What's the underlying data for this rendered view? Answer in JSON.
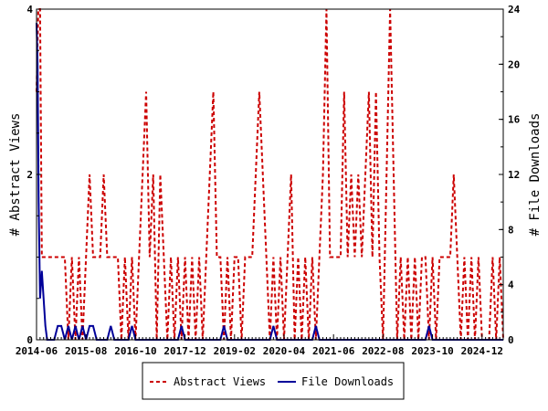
{
  "chart_data": {
    "type": "line",
    "ylabel_left": "# Abstract Views",
    "ylabel_right": "# File Downloads",
    "xlabels": [
      "2014-06",
      "2015-08",
      "2016-10",
      "2017-12",
      "2019-02",
      "2020-04",
      "2021-06",
      "2022-08",
      "2023-10",
      "2024-12"
    ],
    "yticks_left": [
      "0",
      "2",
      "4"
    ],
    "yticks_right": [
      "0",
      "4",
      "8",
      "12",
      "16",
      "20",
      "24"
    ],
    "ylim_left": [
      0,
      4
    ],
    "ylim_right": [
      0,
      24
    ],
    "xlim": [
      0,
      132
    ],
    "legend_position": "bottom-center",
    "series": [
      {
        "name": "Abstract Views",
        "axis": "left",
        "color": "#cc0000",
        "style": "dashed",
        "points": [
          [
            0,
            3
          ],
          [
            0.5,
            4
          ],
          [
            1,
            4
          ],
          [
            1.5,
            1
          ],
          [
            2,
            1
          ],
          [
            3,
            1
          ],
          [
            4,
            1
          ],
          [
            5,
            1
          ],
          [
            6,
            1
          ],
          [
            7,
            1
          ],
          [
            8,
            1
          ],
          [
            9,
            0
          ],
          [
            10,
            1
          ],
          [
            11,
            0
          ],
          [
            12,
            1
          ],
          [
            13,
            0
          ],
          [
            14,
            1
          ],
          [
            15,
            2
          ],
          [
            16,
            1
          ],
          [
            17,
            1
          ],
          [
            18,
            1
          ],
          [
            19,
            2
          ],
          [
            20,
            1
          ],
          [
            21,
            1
          ],
          [
            22,
            1
          ],
          [
            23,
            1
          ],
          [
            24,
            0
          ],
          [
            25,
            1
          ],
          [
            26,
            0
          ],
          [
            27,
            1
          ],
          [
            28,
            0
          ],
          [
            29,
            1
          ],
          [
            30,
            2
          ],
          [
            31,
            3
          ],
          [
            32,
            1
          ],
          [
            33,
            2
          ],
          [
            34,
            0
          ],
          [
            35,
            2
          ],
          [
            36,
            1
          ],
          [
            37,
            0
          ],
          [
            38,
            1
          ],
          [
            39,
            0
          ],
          [
            40,
            1
          ],
          [
            41,
            0
          ],
          [
            42,
            1
          ],
          [
            43,
            0
          ],
          [
            44,
            1
          ],
          [
            45,
            0
          ],
          [
            46,
            1
          ],
          [
            47,
            0
          ],
          [
            48,
            1
          ],
          [
            49,
            2
          ],
          [
            50,
            3
          ],
          [
            51,
            1
          ],
          [
            52,
            1
          ],
          [
            53,
            0
          ],
          [
            54,
            1
          ],
          [
            55,
            0
          ],
          [
            56,
            1
          ],
          [
            57,
            1
          ],
          [
            58,
            0
          ],
          [
            59,
            1
          ],
          [
            60,
            1
          ],
          [
            61,
            1
          ],
          [
            62,
            2
          ],
          [
            63,
            3
          ],
          [
            64,
            2
          ],
          [
            65,
            1
          ],
          [
            66,
            0
          ],
          [
            67,
            1
          ],
          [
            68,
            0
          ],
          [
            69,
            1
          ],
          [
            70,
            0
          ],
          [
            71,
            1
          ],
          [
            72,
            2
          ],
          [
            73,
            0
          ],
          [
            74,
            1
          ],
          [
            75,
            0
          ],
          [
            76,
            1
          ],
          [
            77,
            0
          ],
          [
            78,
            1
          ],
          [
            79,
            0
          ],
          [
            80,
            1
          ],
          [
            81,
            2
          ],
          [
            82,
            4
          ],
          [
            83,
            1
          ],
          [
            84,
            1
          ],
          [
            85,
            1
          ],
          [
            86,
            1
          ],
          [
            87,
            3
          ],
          [
            88,
            1
          ],
          [
            89,
            2
          ],
          [
            90,
            1
          ],
          [
            91,
            2
          ],
          [
            92,
            1
          ],
          [
            93,
            2
          ],
          [
            94,
            3
          ],
          [
            95,
            1
          ],
          [
            96,
            3
          ],
          [
            97,
            1
          ],
          [
            98,
            0
          ],
          [
            99,
            2
          ],
          [
            100,
            4
          ],
          [
            101,
            2
          ],
          [
            102,
            0
          ],
          [
            103,
            1
          ],
          [
            104,
            0
          ],
          [
            105,
            1
          ],
          [
            106,
            0
          ],
          [
            107,
            1
          ],
          [
            108,
            0
          ],
          [
            109,
            1
          ],
          [
            110,
            1
          ],
          [
            111,
            0
          ],
          [
            112,
            1
          ],
          [
            113,
            0
          ],
          [
            114,
            1
          ],
          [
            115,
            1
          ],
          [
            116,
            1
          ],
          [
            117,
            1
          ],
          [
            118,
            2
          ],
          [
            119,
            1
          ],
          [
            120,
            0
          ],
          [
            121,
            1
          ],
          [
            122,
            0
          ],
          [
            123,
            1
          ],
          [
            124,
            0
          ],
          [
            125,
            1
          ],
          [
            126,
            0
          ],
          [
            127,
            0
          ],
          [
            128,
            0
          ],
          [
            129,
            1
          ],
          [
            130,
            0
          ],
          [
            131,
            1
          ],
          [
            132,
            0
          ]
        ]
      },
      {
        "name": "File Downloads",
        "axis": "right",
        "color": "#000099",
        "style": "solid",
        "points": [
          [
            0,
            23
          ],
          [
            0.3,
            20
          ],
          [
            0.6,
            10
          ],
          [
            1,
            3
          ],
          [
            1.5,
            5
          ],
          [
            2,
            3
          ],
          [
            2.5,
            1
          ],
          [
            3,
            0
          ],
          [
            5,
            0
          ],
          [
            6,
            1
          ],
          [
            7,
            1
          ],
          [
            8,
            0
          ],
          [
            9,
            1
          ],
          [
            10,
            0
          ],
          [
            11,
            1
          ],
          [
            12,
            0
          ],
          [
            13,
            1
          ],
          [
            14,
            0
          ],
          [
            15,
            1
          ],
          [
            16,
            1
          ],
          [
            17,
            0
          ],
          [
            18,
            0
          ],
          [
            20,
            0
          ],
          [
            21,
            1
          ],
          [
            22,
            0
          ],
          [
            26,
            0
          ],
          [
            27,
            1
          ],
          [
            28,
            0
          ],
          [
            40,
            0
          ],
          [
            41,
            1
          ],
          [
            42,
            0
          ],
          [
            52,
            0
          ],
          [
            53,
            1
          ],
          [
            54,
            0
          ],
          [
            55,
            0
          ],
          [
            66,
            0
          ],
          [
            67,
            1
          ],
          [
            68,
            0
          ],
          [
            78,
            0
          ],
          [
            79,
            1
          ],
          [
            80,
            0
          ],
          [
            110,
            0
          ],
          [
            111,
            1
          ],
          [
            112,
            0
          ],
          [
            132,
            0
          ]
        ]
      }
    ]
  }
}
